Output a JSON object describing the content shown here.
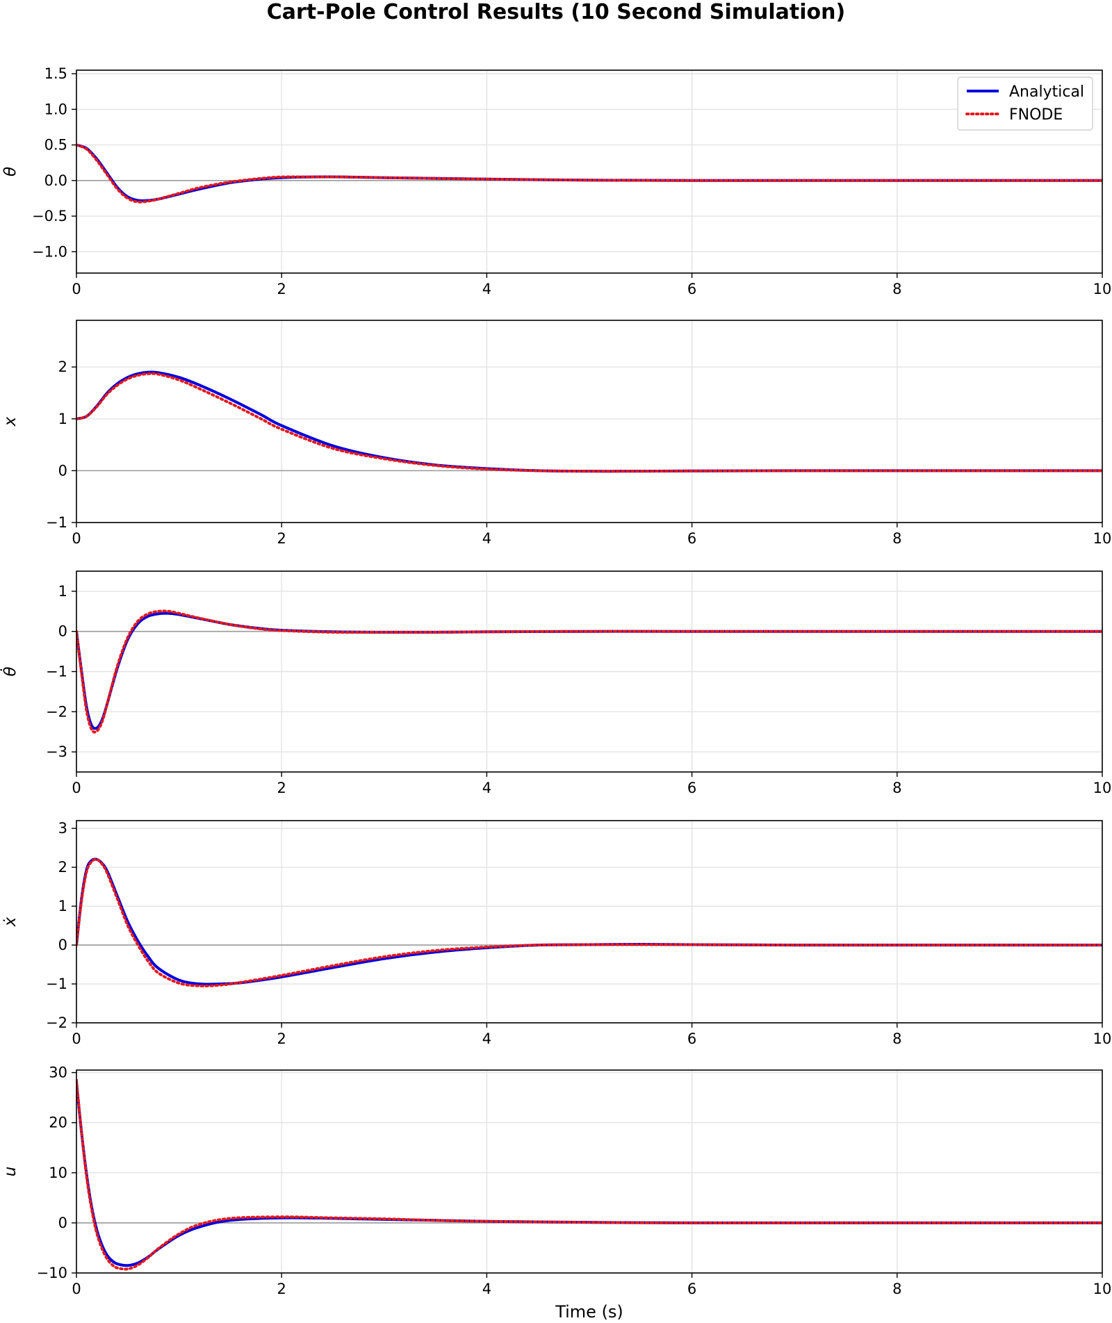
{
  "figure": {
    "title": "Cart-Pole Control Results (10 Second Simulation)",
    "xlabel": "Time (s)"
  },
  "colors": {
    "analytical": "#0000dd",
    "fnode": "#e31a1c",
    "grid": "#e3e3e3",
    "zero_line": "#9a9a9a"
  },
  "legend": {
    "placement": "top-right of first panel",
    "entries": [
      {
        "label": "Analytical",
        "style": "solid",
        "color": "#0000dd"
      },
      {
        "label": "FNODE",
        "style": "dotted",
        "color": "#e31a1c"
      }
    ]
  },
  "chart_data": [
    {
      "type": "line",
      "ylabel": "θ",
      "xlim": [
        0,
        10
      ],
      "ylim": [
        -1.3,
        1.55
      ],
      "x_ticks": [
        "0",
        "2",
        "4",
        "6",
        "8",
        "10"
      ],
      "y_ticks": [
        "1.5",
        "1.0",
        "0.5",
        "0.0",
        "−0.5",
        "−1.0"
      ],
      "y_tick_values": [
        1.5,
        1.0,
        0.5,
        0.0,
        -0.5,
        -1.0
      ],
      "grid": true,
      "series": [
        {
          "name": "Analytical",
          "x": [
            0,
            0.1,
            0.2,
            0.3,
            0.4,
            0.5,
            0.6,
            0.7,
            0.8,
            1.0,
            1.2,
            1.5,
            1.8,
            2.0,
            2.3,
            2.6,
            3.0,
            3.5,
            4.0,
            5.0,
            6.0,
            7.0,
            8.0,
            9.0,
            10.0
          ],
          "y": [
            0.5,
            0.45,
            0.3,
            0.1,
            -0.1,
            -0.23,
            -0.28,
            -0.28,
            -0.26,
            -0.19,
            -0.12,
            -0.03,
            0.02,
            0.04,
            0.05,
            0.05,
            0.04,
            0.03,
            0.02,
            0.005,
            0.0,
            0.0,
            0.0,
            0.0,
            0.0
          ]
        },
        {
          "name": "FNODE",
          "x": [
            0,
            0.1,
            0.2,
            0.3,
            0.4,
            0.5,
            0.6,
            0.7,
            0.8,
            1.0,
            1.2,
            1.5,
            1.8,
            2.0,
            2.3,
            2.6,
            3.0,
            3.5,
            4.0,
            5.0,
            6.0,
            7.0,
            8.0,
            9.0,
            10.0
          ],
          "y": [
            0.5,
            0.44,
            0.28,
            0.08,
            -0.12,
            -0.25,
            -0.3,
            -0.29,
            -0.26,
            -0.18,
            -0.1,
            -0.02,
            0.03,
            0.05,
            0.05,
            0.05,
            0.04,
            0.03,
            0.02,
            0.005,
            0.0,
            0.0,
            0.0,
            0.0,
            0.0
          ]
        }
      ]
    },
    {
      "type": "line",
      "ylabel": "x",
      "xlim": [
        0,
        10
      ],
      "ylim": [
        -1,
        2.9
      ],
      "x_ticks": [
        "0",
        "2",
        "4",
        "6",
        "8",
        "10"
      ],
      "y_ticks": [
        "2",
        "1",
        "0",
        "−1"
      ],
      "y_tick_values": [
        2,
        1,
        0,
        -1
      ],
      "grid": true,
      "series": [
        {
          "name": "Analytical",
          "x": [
            0,
            0.1,
            0.2,
            0.3,
            0.4,
            0.5,
            0.6,
            0.7,
            0.8,
            1.0,
            1.2,
            1.5,
            1.8,
            2.0,
            2.5,
            3.0,
            3.5,
            4.0,
            4.5,
            5.0,
            5.5,
            6.0,
            7.0,
            8.0,
            9.0,
            10.0
          ],
          "y": [
            1.0,
            1.05,
            1.25,
            1.5,
            1.68,
            1.8,
            1.87,
            1.9,
            1.89,
            1.8,
            1.65,
            1.38,
            1.08,
            0.87,
            0.48,
            0.25,
            0.11,
            0.04,
            0.0,
            -0.01,
            -0.01,
            -0.005,
            0.0,
            0.0,
            0.0,
            0.0
          ]
        },
        {
          "name": "FNODE",
          "x": [
            0,
            0.1,
            0.2,
            0.3,
            0.4,
            0.5,
            0.6,
            0.7,
            0.8,
            1.0,
            1.2,
            1.5,
            1.8,
            2.0,
            2.5,
            3.0,
            3.5,
            4.0,
            4.5,
            5.0,
            5.5,
            6.0,
            7.0,
            8.0,
            9.0,
            10.0
          ],
          "y": [
            1.0,
            1.05,
            1.24,
            1.48,
            1.65,
            1.77,
            1.84,
            1.87,
            1.86,
            1.75,
            1.58,
            1.3,
            1.0,
            0.8,
            0.43,
            0.23,
            0.1,
            0.03,
            0.0,
            -0.01,
            -0.01,
            -0.005,
            0.0,
            0.0,
            0.0,
            0.0
          ]
        }
      ]
    },
    {
      "type": "line",
      "ylabel": "θ̇",
      "xlim": [
        0,
        10
      ],
      "ylim": [
        -3.5,
        1.5
      ],
      "x_ticks": [
        "0",
        "2",
        "4",
        "6",
        "8",
        "10"
      ],
      "y_ticks": [
        "1",
        "0",
        "−1",
        "−2",
        "−3"
      ],
      "y_tick_values": [
        1,
        0,
        -1,
        -2,
        -3
      ],
      "grid": true,
      "series": [
        {
          "name": "Analytical",
          "x": [
            0,
            0.05,
            0.1,
            0.15,
            0.2,
            0.25,
            0.3,
            0.4,
            0.5,
            0.6,
            0.7,
            0.8,
            0.9,
            1.0,
            1.2,
            1.5,
            1.8,
            2.0,
            2.5,
            3.0,
            3.5,
            4.0,
            5.0,
            6.0,
            8.0,
            10.0
          ],
          "y": [
            0.0,
            -1.0,
            -1.9,
            -2.35,
            -2.4,
            -2.2,
            -1.8,
            -0.9,
            -0.2,
            0.2,
            0.38,
            0.44,
            0.45,
            0.42,
            0.32,
            0.17,
            0.07,
            0.03,
            -0.01,
            -0.02,
            -0.02,
            -0.01,
            0.0,
            0.0,
            0.0,
            0.0
          ]
        },
        {
          "name": "FNODE",
          "x": [
            0,
            0.05,
            0.1,
            0.15,
            0.2,
            0.25,
            0.3,
            0.4,
            0.5,
            0.6,
            0.7,
            0.8,
            0.9,
            1.0,
            1.2,
            1.5,
            1.8,
            2.0,
            2.5,
            3.0,
            3.5,
            4.0,
            5.0,
            6.0,
            8.0,
            10.0
          ],
          "y": [
            0.0,
            -1.05,
            -2.0,
            -2.45,
            -2.48,
            -2.25,
            -1.8,
            -0.85,
            -0.15,
            0.26,
            0.44,
            0.5,
            0.5,
            0.45,
            0.33,
            0.17,
            0.06,
            0.02,
            -0.02,
            -0.02,
            -0.02,
            -0.01,
            0.0,
            0.0,
            0.0,
            0.0
          ]
        }
      ]
    },
    {
      "type": "line",
      "ylabel": "ẋ",
      "xlim": [
        0,
        10
      ],
      "ylim": [
        -2,
        3.2
      ],
      "x_ticks": [
        "0",
        "2",
        "4",
        "6",
        "8",
        "10"
      ],
      "y_ticks": [
        "3",
        "2",
        "1",
        "0",
        "−1",
        "−2"
      ],
      "y_tick_values": [
        3,
        2,
        1,
        0,
        -1,
        -2
      ],
      "grid": true,
      "series": [
        {
          "name": "Analytical",
          "x": [
            0,
            0.05,
            0.1,
            0.15,
            0.2,
            0.25,
            0.3,
            0.4,
            0.5,
            0.6,
            0.7,
            0.8,
            1.0,
            1.2,
            1.4,
            1.6,
            2.0,
            2.5,
            3.0,
            3.5,
            4.0,
            4.5,
            5.0,
            5.5,
            6.0,
            7.0,
            8.0,
            10.0
          ],
          "y": [
            0.0,
            1.2,
            1.95,
            2.18,
            2.2,
            2.1,
            1.9,
            1.25,
            0.6,
            0.1,
            -0.3,
            -0.6,
            -0.9,
            -1.0,
            -1.0,
            -0.97,
            -0.82,
            -0.58,
            -0.35,
            -0.18,
            -0.07,
            0.0,
            0.01,
            0.02,
            0.01,
            0.0,
            0.0,
            0.0
          ]
        },
        {
          "name": "FNODE",
          "x": [
            0,
            0.05,
            0.1,
            0.15,
            0.2,
            0.25,
            0.3,
            0.4,
            0.5,
            0.6,
            0.7,
            0.8,
            1.0,
            1.2,
            1.4,
            1.6,
            2.0,
            2.5,
            3.0,
            3.5,
            4.0,
            4.5,
            5.0,
            5.5,
            6.0,
            7.0,
            8.0,
            10.0
          ],
          "y": [
            0.0,
            1.15,
            1.9,
            2.15,
            2.2,
            2.08,
            1.85,
            1.18,
            0.5,
            0.0,
            -0.42,
            -0.72,
            -0.98,
            -1.05,
            -1.03,
            -0.96,
            -0.78,
            -0.53,
            -0.3,
            -0.14,
            -0.05,
            0.0,
            0.01,
            0.01,
            0.01,
            0.0,
            0.0,
            0.0
          ]
        }
      ]
    },
    {
      "type": "line",
      "ylabel": "u",
      "xlim": [
        0,
        10
      ],
      "ylim": [
        -10,
        30.5
      ],
      "x_ticks": [
        "0",
        "2",
        "4",
        "6",
        "8",
        "10"
      ],
      "y_ticks": [
        "30",
        "20",
        "10",
        "0",
        "−10"
      ],
      "y_tick_values": [
        30,
        20,
        10,
        0,
        -10
      ],
      "grid": true,
      "series": [
        {
          "name": "Analytical",
          "x": [
            0,
            0.05,
            0.1,
            0.15,
            0.2,
            0.25,
            0.3,
            0.35,
            0.4,
            0.5,
            0.6,
            0.7,
            0.8,
            1.0,
            1.2,
            1.5,
            2.0,
            2.5,
            3.0,
            3.5,
            4.0,
            5.0,
            6.0,
            8.0,
            10.0
          ],
          "y": [
            28.0,
            18.0,
            9.5,
            3.0,
            -1.5,
            -4.5,
            -6.5,
            -7.6,
            -8.2,
            -8.5,
            -8.0,
            -6.8,
            -5.2,
            -2.5,
            -0.8,
            0.5,
            1.0,
            0.9,
            0.7,
            0.5,
            0.3,
            0.1,
            0.0,
            0.0,
            0.0
          ]
        },
        {
          "name": "FNODE",
          "x": [
            0,
            0.05,
            0.1,
            0.15,
            0.2,
            0.25,
            0.3,
            0.35,
            0.4,
            0.5,
            0.6,
            0.7,
            0.8,
            1.0,
            1.2,
            1.5,
            2.0,
            2.5,
            3.0,
            3.5,
            4.0,
            5.0,
            6.0,
            8.0,
            10.0
          ],
          "y": [
            28.5,
            18.0,
            9.0,
            2.5,
            -2.2,
            -5.2,
            -7.2,
            -8.4,
            -9.0,
            -9.2,
            -8.4,
            -6.9,
            -5.1,
            -2.2,
            -0.3,
            0.9,
            1.2,
            1.0,
            0.8,
            0.5,
            0.3,
            0.1,
            0.0,
            0.0,
            0.0
          ]
        }
      ]
    }
  ]
}
